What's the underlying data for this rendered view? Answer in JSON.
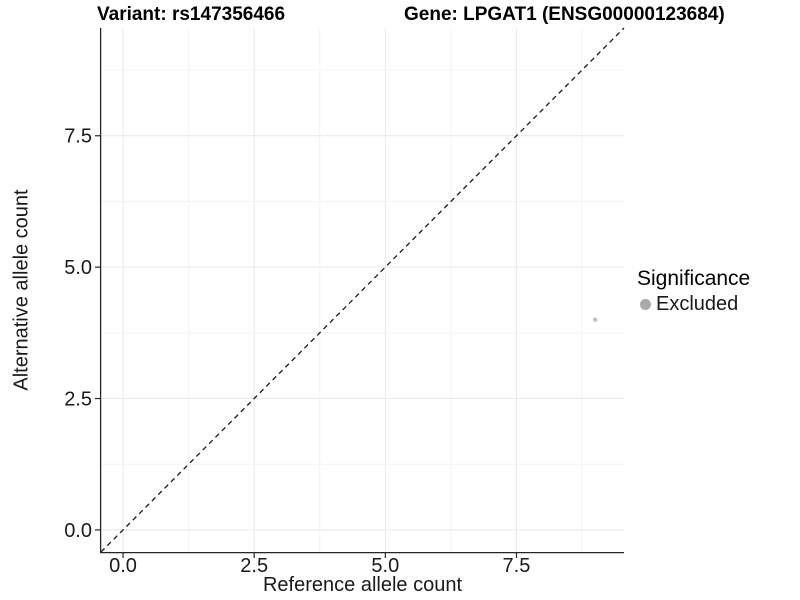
{
  "header": {
    "variant_title": "Variant: rs147356466",
    "gene_title": "Gene: LPGAT1 (ENSG00000123684)"
  },
  "chart_data": {
    "type": "scatter",
    "xlabel": "Reference allele count",
    "ylabel": "Alternative allele count",
    "xlim": [
      -0.42,
      9.55
    ],
    "ylim": [
      -0.42,
      9.55
    ],
    "x_ticks": [
      0,
      2.5,
      5,
      7.5
    ],
    "y_ticks": [
      0,
      2.5,
      5,
      7.5
    ],
    "x_tick_labels": [
      "0.0",
      "2.5",
      "5.0",
      "7.5"
    ],
    "y_tick_labels": [
      "0.0",
      "2.5",
      "5.0",
      "7.5"
    ],
    "x_minor_ticks": [
      1.25,
      3.75,
      6.25,
      8.75
    ],
    "y_minor_ticks": [
      1.25,
      3.75,
      6.25,
      8.75
    ],
    "grid": "major+minor",
    "identity_line": {
      "slope": 1,
      "intercept": 0,
      "style": "dashed",
      "color": "#1a1a1a"
    },
    "series": [
      {
        "name": "Excluded",
        "marker": "circle",
        "color": "#bebebe",
        "points": [
          {
            "x": 9,
            "y": 4
          }
        ]
      }
    ],
    "legend": {
      "title": "Significance",
      "position": "right",
      "entries": [
        {
          "label": "Excluded",
          "color": "#aaaaaa",
          "marker": "circle"
        }
      ]
    },
    "colors": {
      "axis_line": "#262626",
      "tick_label": "#1a1a1a",
      "grid_major": "#e9e9e9",
      "grid_minor": "#f4f4f4",
      "panel_bg": "#ffffff"
    }
  }
}
